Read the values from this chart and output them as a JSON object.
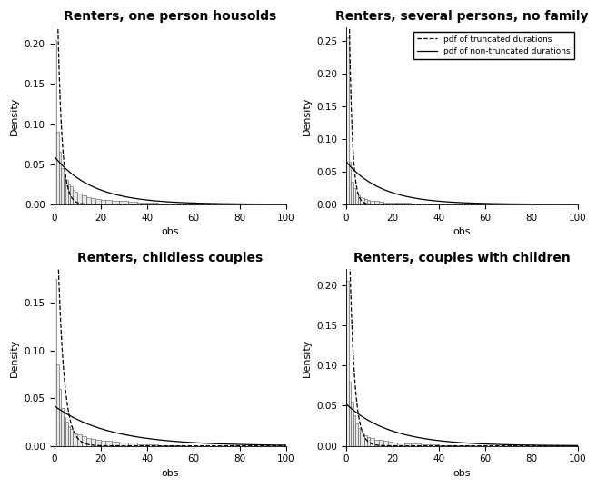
{
  "titles": [
    "Renters, one person housolds",
    "Renters, several persons, no family",
    "Renters, childless couples",
    "Renters, couples with children"
  ],
  "xlabel": "obs",
  "ylabel": "Density",
  "xlim": [
    0,
    100
  ],
  "xticks": [
    0,
    20,
    40,
    60,
    80,
    100
  ],
  "legend_labels": [
    "pdf of truncated durations",
    "pdf of non-truncated durations"
  ],
  "panels": [
    {
      "ylim_max": 0.22,
      "yticks": [
        0.0,
        0.05,
        0.1,
        0.15,
        0.2
      ],
      "lambda_trunc": 0.55,
      "lambda_nontrunc": 0.06,
      "bar_lefts": [
        0,
        1,
        2,
        3,
        4,
        5,
        6,
        7,
        8,
        9,
        10,
        12,
        14,
        16,
        18,
        20,
        22,
        25,
        28,
        32,
        36,
        40,
        45,
        50
      ],
      "bar_heights": [
        0.205,
        0.09,
        0.065,
        0.045,
        0.038,
        0.03,
        0.025,
        0.022,
        0.018,
        0.016,
        0.014,
        0.011,
        0.009,
        0.008,
        0.007,
        0.006,
        0.005,
        0.004,
        0.004,
        0.003,
        0.002,
        0.002,
        0.001,
        0.001
      ]
    },
    {
      "ylim_max": 0.27,
      "yticks": [
        0.0,
        0.05,
        0.1,
        0.15,
        0.2,
        0.25
      ],
      "lambda_trunc": 0.75,
      "lambda_nontrunc": 0.065,
      "bar_lefts": [
        0,
        1,
        2,
        3,
        4,
        5,
        6,
        7,
        8,
        9,
        10,
        12,
        14,
        16,
        18,
        20,
        22,
        25,
        28,
        32,
        36,
        40,
        45,
        50
      ],
      "bar_heights": [
        0.255,
        0.065,
        0.035,
        0.025,
        0.018,
        0.014,
        0.011,
        0.009,
        0.008,
        0.007,
        0.006,
        0.005,
        0.004,
        0.003,
        0.003,
        0.002,
        0.002,
        0.002,
        0.001,
        0.001,
        0.001,
        0.001,
        0.001,
        0.0005
      ]
    },
    {
      "ylim_max": 0.185,
      "yticks": [
        0.0,
        0.05,
        0.1,
        0.15
      ],
      "lambda_trunc": 0.38,
      "lambda_nontrunc": 0.042,
      "bar_lefts": [
        0,
        1,
        2,
        3,
        4,
        5,
        6,
        7,
        8,
        9,
        10,
        12,
        14,
        16,
        18,
        20,
        22,
        25,
        28,
        32,
        36,
        40,
        45,
        50
      ],
      "bar_heights": [
        0.175,
        0.085,
        0.06,
        0.04,
        0.03,
        0.025,
        0.021,
        0.018,
        0.015,
        0.013,
        0.012,
        0.01,
        0.008,
        0.007,
        0.006,
        0.005,
        0.005,
        0.004,
        0.003,
        0.003,
        0.002,
        0.002,
        0.001,
        0.001
      ]
    },
    {
      "ylim_max": 0.22,
      "yticks": [
        0.0,
        0.05,
        0.1,
        0.15,
        0.2
      ],
      "lambda_trunc": 0.48,
      "lambda_nontrunc": 0.052,
      "bar_lefts": [
        0,
        1,
        2,
        3,
        4,
        5,
        6,
        7,
        8,
        9,
        10,
        12,
        14,
        16,
        18,
        20,
        22,
        25,
        28,
        32,
        36,
        40,
        45,
        50
      ],
      "bar_heights": [
        0.205,
        0.08,
        0.055,
        0.038,
        0.028,
        0.022,
        0.018,
        0.015,
        0.013,
        0.011,
        0.01,
        0.008,
        0.007,
        0.006,
        0.005,
        0.004,
        0.004,
        0.003,
        0.003,
        0.002,
        0.002,
        0.001,
        0.001,
        0.001
      ]
    }
  ],
  "bar_color": "#e8e8e8",
  "bar_edge_color": "#555555",
  "line_color": "#000000",
  "background_color": "#ffffff",
  "title_fontsize": 10,
  "axis_fontsize": 8,
  "tick_fontsize": 7.5
}
